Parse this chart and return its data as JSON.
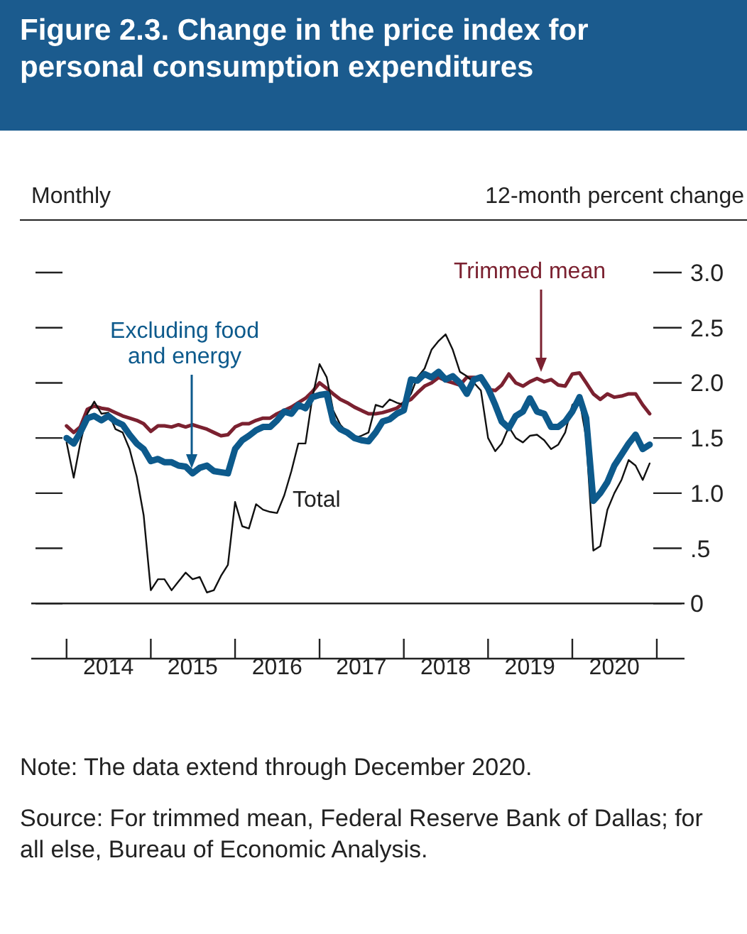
{
  "chart_data": {
    "type": "line",
    "title": "Figure 2.3. Change in the price index for personal consumption expenditures",
    "ylabel": "12-month percent change",
    "x": [
      "2014-01",
      "2014-02",
      "2014-03",
      "2014-04",
      "2014-05",
      "2014-06",
      "2014-07",
      "2014-08",
      "2014-09",
      "2014-10",
      "2014-11",
      "2014-12",
      "2015-01",
      "2015-02",
      "2015-03",
      "2015-04",
      "2015-05",
      "2015-06",
      "2015-07",
      "2015-08",
      "2015-09",
      "2015-10",
      "2015-11",
      "2015-12",
      "2016-01",
      "2016-02",
      "2016-03",
      "2016-04",
      "2016-05",
      "2016-06",
      "2016-07",
      "2016-08",
      "2016-09",
      "2016-10",
      "2016-11",
      "2016-12",
      "2017-01",
      "2017-02",
      "2017-03",
      "2017-04",
      "2017-05",
      "2017-06",
      "2017-07",
      "2017-08",
      "2017-09",
      "2017-10",
      "2017-11",
      "2017-12",
      "2018-01",
      "2018-02",
      "2018-03",
      "2018-04",
      "2018-05",
      "2018-06",
      "2018-07",
      "2018-08",
      "2018-09",
      "2018-10",
      "2018-11",
      "2018-12",
      "2019-01",
      "2019-02",
      "2019-03",
      "2019-04",
      "2019-05",
      "2019-06",
      "2019-07",
      "2019-08",
      "2019-09",
      "2019-10",
      "2019-11",
      "2019-12",
      "2020-01",
      "2020-02",
      "2020-03",
      "2020-04",
      "2020-05",
      "2020-06",
      "2020-07",
      "2020-08",
      "2020-09",
      "2020-10",
      "2020-11",
      "2020-12"
    ],
    "series": [
      {
        "color": "#7b2130",
        "values": [
          1.61,
          1.55,
          1.6,
          1.76,
          1.79,
          1.77,
          1.76,
          1.73,
          1.7,
          1.68,
          1.66,
          1.63,
          1.56,
          1.61,
          1.61,
          1.6,
          1.62,
          1.6,
          1.62,
          1.6,
          1.58,
          1.55,
          1.52,
          1.53,
          1.6,
          1.63,
          1.63,
          1.66,
          1.68,
          1.68,
          1.72,
          1.75,
          1.78,
          1.82,
          1.86,
          1.92,
          2.0,
          1.95,
          1.9,
          1.85,
          1.82,
          1.78,
          1.75,
          1.72,
          1.72,
          1.73,
          1.75,
          1.77,
          1.82,
          1.85,
          1.91,
          1.97,
          2.0,
          2.05,
          2.02,
          2.0,
          1.98,
          2.05,
          2.05,
          2.03,
          1.94,
          1.93,
          1.98,
          2.08,
          2.0,
          1.97,
          2.01,
          2.04,
          2.01,
          2.03,
          1.98,
          1.97,
          2.08,
          2.09,
          2.0,
          1.9,
          1.85,
          1.9,
          1.87,
          1.88,
          1.9,
          1.9,
          1.8,
          1.72
        ]
      },
      {
        "color": "#111111",
        "values": [
          1.46,
          1.14,
          1.45,
          1.72,
          1.83,
          1.72,
          1.73,
          1.58,
          1.55,
          1.4,
          1.15,
          0.8,
          0.12,
          0.22,
          0.22,
          0.12,
          0.2,
          0.28,
          0.22,
          0.24,
          0.1,
          0.12,
          0.25,
          0.35,
          0.92,
          0.7,
          0.68,
          0.9,
          0.85,
          0.83,
          0.82,
          0.98,
          1.2,
          1.45,
          1.45,
          1.87,
          2.17,
          2.05,
          1.75,
          1.62,
          1.55,
          1.5,
          1.52,
          1.55,
          1.8,
          1.78,
          1.85,
          1.82,
          1.8,
          1.9,
          2.05,
          2.13,
          2.3,
          2.38,
          2.44,
          2.3,
          2.1,
          2.06,
          2.0,
          1.93,
          1.5,
          1.38,
          1.45,
          1.6,
          1.5,
          1.46,
          1.52,
          1.53,
          1.48,
          1.4,
          1.44,
          1.55,
          1.8,
          1.85,
          1.5,
          0.48,
          0.52,
          0.85,
          1.0,
          1.12,
          1.3,
          1.25,
          1.12,
          1.27
        ]
      },
      {
        "color": "#0d5a8c",
        "values": [
          1.5,
          1.45,
          1.55,
          1.68,
          1.7,
          1.66,
          1.7,
          1.65,
          1.62,
          1.53,
          1.45,
          1.4,
          1.29,
          1.31,
          1.28,
          1.28,
          1.25,
          1.24,
          1.18,
          1.23,
          1.25,
          1.2,
          1.19,
          1.18,
          1.4,
          1.48,
          1.52,
          1.57,
          1.6,
          1.6,
          1.66,
          1.74,
          1.72,
          1.8,
          1.77,
          1.87,
          1.89,
          1.9,
          1.65,
          1.58,
          1.55,
          1.5,
          1.48,
          1.47,
          1.55,
          1.65,
          1.67,
          1.72,
          1.75,
          2.03,
          2.02,
          2.08,
          2.05,
          2.1,
          2.03,
          2.06,
          2.0,
          1.9,
          2.03,
          2.05,
          1.95,
          1.8,
          1.65,
          1.59,
          1.7,
          1.74,
          1.86,
          1.74,
          1.72,
          1.6,
          1.6,
          1.65,
          1.74,
          1.87,
          1.68,
          0.93,
          1.0,
          1.1,
          1.25,
          1.35,
          1.45,
          1.53,
          1.4,
          1.44
        ]
      }
    ],
    "xlim": [
      "2013-08",
      "2021-05"
    ],
    "xticks": [
      {
        "value": "2014-01",
        "label": null
      },
      {
        "value": "2014-07",
        "label": "2014"
      },
      {
        "value": "2015-01",
        "label": null
      },
      {
        "value": "2015-07",
        "label": "2015"
      },
      {
        "value": "2016-01",
        "label": null
      },
      {
        "value": "2016-07",
        "label": "2016"
      },
      {
        "value": "2017-01",
        "label": null
      },
      {
        "value": "2017-07",
        "label": "2017"
      },
      {
        "value": "2018-01",
        "label": null
      },
      {
        "value": "2018-07",
        "label": "2018"
      },
      {
        "value": "2019-01",
        "label": null
      },
      {
        "value": "2019-07",
        "label": "2019"
      },
      {
        "value": "2020-01",
        "label": null
      },
      {
        "value": "2020-07",
        "label": "2020"
      },
      {
        "value": "2021-01",
        "label": null
      }
    ],
    "ylim": [
      -0.5,
      3.0
    ],
    "yticks": [
      0,
      {
        "value": 0.5,
        "label": ".5"
      },
      {
        "value": 1,
        "label": "1.0"
      },
      1.5,
      {
        "value": 2,
        "label": "2.0"
      },
      2.5,
      {
        "value": 3,
        "label": "3.0"
      }
    ],
    "ref_lines": [
      {
        "axis": "y",
        "value": 0
      }
    ],
    "grid": false,
    "annotations": [
      "Monthly",
      "Trimmed mean",
      "Excluding food and energy",
      "Total",
      "Note: The data extend through December 2020.",
      "Source: For trimmed mean, Federal Reserve Bank of Dallas; for all else, Bureau of Economic Analysis."
    ]
  }
}
